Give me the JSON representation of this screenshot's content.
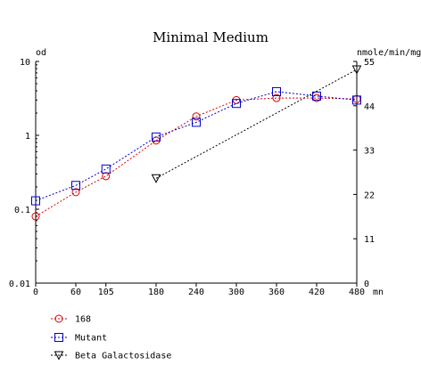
{
  "chart_data": {
    "type": "line",
    "title": "Minimal Medium",
    "left_axis": {
      "label": "od",
      "scale": "log",
      "range": [
        0.01,
        10
      ],
      "ticks": [
        {
          "value": 10,
          "label": "10"
        },
        {
          "value": 1,
          "label": "1"
        },
        {
          "value": 0.1,
          "label": "0.1"
        },
        {
          "value": 0.01,
          "label": "0.01"
        }
      ]
    },
    "right_axis": {
      "label": "nmole/min/mg",
      "scale": "linear",
      "range": [
        0,
        55
      ],
      "ticks": [
        {
          "value": 55,
          "label": "55"
        },
        {
          "value": 44,
          "label": "44"
        },
        {
          "value": 33,
          "label": "33"
        },
        {
          "value": 22,
          "label": "22"
        },
        {
          "value": 11,
          "label": "11"
        },
        {
          "value": 0,
          "label": "0"
        }
      ]
    },
    "x_axis": {
      "unit": "mn",
      "range": [
        0,
        480
      ],
      "ticks": [
        {
          "value": 0,
          "label": "0"
        },
        {
          "value": 60,
          "label": "60"
        },
        {
          "value": 105,
          "label": "105"
        },
        {
          "value": 180,
          "label": "180"
        },
        {
          "value": 240,
          "label": "240"
        },
        {
          "value": 300,
          "label": "300"
        },
        {
          "value": 360,
          "label": "360"
        },
        {
          "value": 420,
          "label": "420"
        },
        {
          "value": 480,
          "label": "480"
        }
      ]
    },
    "grid": false,
    "legend_position": "bottom-left",
    "series": [
      {
        "name": "168",
        "color": "#dd0000",
        "marker": "circle",
        "axis": "left",
        "x": [
          0,
          60,
          105,
          180,
          240,
          300,
          360,
          420,
          480
        ],
        "y": [
          0.08,
          0.17,
          0.28,
          0.85,
          1.8,
          3.0,
          3.2,
          3.2,
          3.1
        ]
      },
      {
        "name": "Mutant",
        "color": "#0000cc",
        "marker": "square",
        "axis": "left",
        "x": [
          0,
          60,
          105,
          180,
          240,
          300,
          360,
          420,
          480
        ],
        "y": [
          0.13,
          0.21,
          0.35,
          0.95,
          1.5,
          2.7,
          3.9,
          3.4,
          3.0
        ]
      },
      {
        "name": "Beta Galactosidase",
        "color": "#000000",
        "marker": "triangle-down",
        "axis": "right",
        "x": [
          180,
          480
        ],
        "y": [
          26,
          53
        ]
      }
    ]
  }
}
